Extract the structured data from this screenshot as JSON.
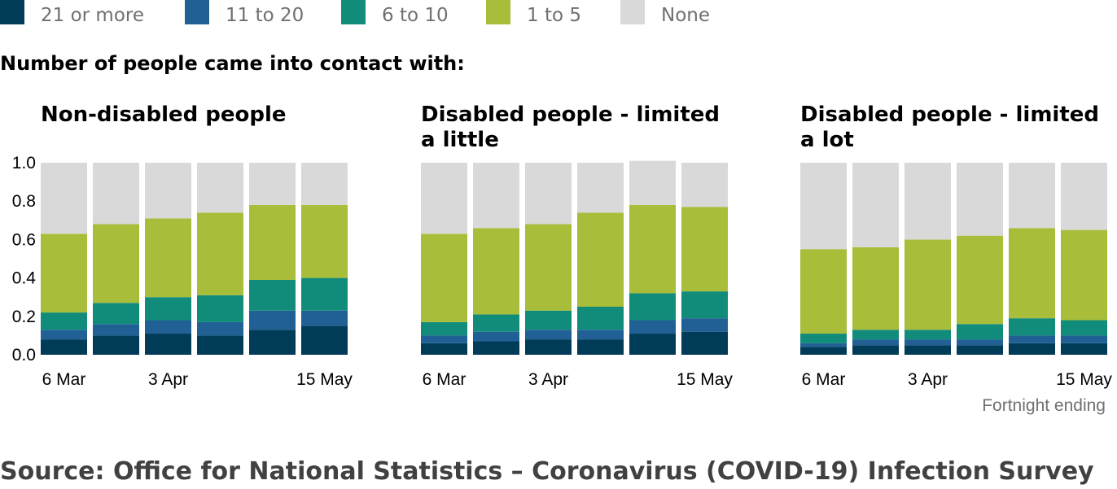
{
  "legend": [
    {
      "label": "21 or more",
      "color": "#003c57"
    },
    {
      "label": "11 to 20",
      "color": "#206095"
    },
    {
      "label": "6 to 10",
      "color": "#118c7b"
    },
    {
      "label": "1 to 5",
      "color": "#a8bd3a"
    },
    {
      "label": "None",
      "color": "#d9d9d9"
    }
  ],
  "subtitle": "Number of people came into contact with:",
  "xlabel": "Fortnight ending",
  "source": "Source: Office for National Statistics – Coronavirus (COVID-19) Infection Survey",
  "chart_data": {
    "type": "bar",
    "stacked": true,
    "ylim": [
      0,
      1.0
    ],
    "yticks": [
      "1.0",
      "0.8",
      "0.6",
      "0.4",
      "0.2",
      "0.0"
    ],
    "xlabel": "Fortnight ending",
    "x_tick_labels": [
      "6 Mar",
      "",
      "3 Apr",
      "",
      "",
      "15 May"
    ],
    "legend_position": "top",
    "series_names": [
      "21 or more",
      "11 to 20",
      "6 to 10",
      "1 to 5",
      "None"
    ],
    "panels": [
      {
        "title": "Non-disabled people",
        "segments": [
          [
            0.08,
            0.05,
            0.09,
            0.41,
            0.37
          ],
          [
            0.1,
            0.06,
            0.11,
            0.41,
            0.32
          ],
          [
            0.11,
            0.07,
            0.12,
            0.41,
            0.29
          ],
          [
            0.1,
            0.07,
            0.14,
            0.43,
            0.26
          ],
          [
            0.13,
            0.1,
            0.16,
            0.39,
            0.22
          ],
          [
            0.15,
            0.08,
            0.17,
            0.38,
            0.22
          ]
        ]
      },
      {
        "title": "Disabled people - limited a little",
        "segments": [
          [
            0.06,
            0.04,
            0.07,
            0.46,
            0.37
          ],
          [
            0.07,
            0.05,
            0.09,
            0.45,
            0.34
          ],
          [
            0.08,
            0.05,
            0.1,
            0.45,
            0.32
          ],
          [
            0.08,
            0.05,
            0.12,
            0.49,
            0.26
          ],
          [
            0.11,
            0.07,
            0.14,
            0.46,
            0.23
          ],
          [
            0.12,
            0.07,
            0.14,
            0.44,
            0.23
          ]
        ]
      },
      {
        "title": "Disabled people - limited a lot",
        "segments": [
          [
            0.04,
            0.02,
            0.05,
            0.44,
            0.45
          ],
          [
            0.05,
            0.03,
            0.05,
            0.43,
            0.44
          ],
          [
            0.05,
            0.03,
            0.05,
            0.47,
            0.4
          ],
          [
            0.05,
            0.03,
            0.08,
            0.46,
            0.38
          ],
          [
            0.06,
            0.04,
            0.09,
            0.47,
            0.34
          ],
          [
            0.06,
            0.04,
            0.08,
            0.47,
            0.35
          ]
        ]
      }
    ]
  }
}
